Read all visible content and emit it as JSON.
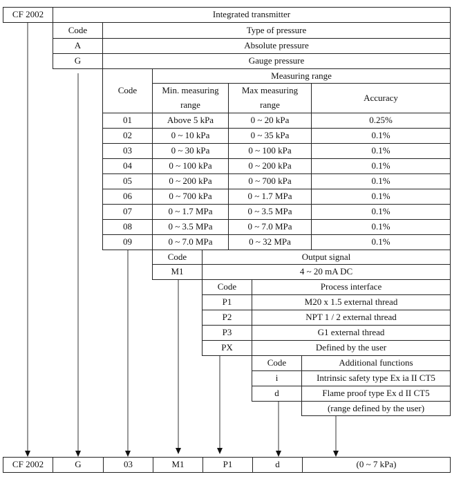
{
  "header": {
    "model": "CF 2002",
    "title": "Integrated transmitter"
  },
  "pressure": {
    "code_label": "Code",
    "type_label": "Type of pressure",
    "rows": [
      {
        "code": "A",
        "desc": "Absolute pressure"
      },
      {
        "code": "G",
        "desc": "Gauge pressure"
      }
    ]
  },
  "range": {
    "code_label": "Code",
    "title": "Measuring range",
    "min_label": "Min. measuring range",
    "max_label": "Max measuring range",
    "accuracy_label": "Accuracy",
    "rows": [
      {
        "code": "01",
        "min": "Above 5 kPa",
        "max": "0 ~ 20 kPa",
        "acc": "0.25%"
      },
      {
        "code": "02",
        "min": "0 ~ 10 kPa",
        "max": "0 ~ 35 kPa",
        "acc": "0.1%"
      },
      {
        "code": "03",
        "min": "0 ~ 30 kPa",
        "max": "0 ~ 100 kPa",
        "acc": "0.1%"
      },
      {
        "code": "04",
        "min": "0 ~ 100 kPa",
        "max": "0 ~ 200 kPa",
        "acc": "0.1%"
      },
      {
        "code": "05",
        "min": "0 ~ 200 kPa",
        "max": "0 ~ 700 kPa",
        "acc": "0.1%"
      },
      {
        "code": "06",
        "min": "0 ~ 700 kPa",
        "max": "0 ~ 1.7 MPa",
        "acc": "0.1%"
      },
      {
        "code": "07",
        "min": "0 ~ 1.7 MPa",
        "max": "0 ~ 3.5 MPa",
        "acc": "0.1%"
      },
      {
        "code": "08",
        "min": "0 ~ 3.5 MPa",
        "max": "0 ~ 7.0 MPa",
        "acc": "0.1%"
      },
      {
        "code": "09",
        "min": "0 ~ 7.0 MPa",
        "max": "0 ~ 32 MPa",
        "acc": "0.1%"
      }
    ]
  },
  "output": {
    "code_label": "Code",
    "title": "Output signal",
    "rows": [
      {
        "code": "M1",
        "desc": "4 ~ 20 mA DC"
      }
    ]
  },
  "process": {
    "code_label": "Code",
    "title": "Process interface",
    "rows": [
      {
        "code": "P1",
        "desc": "M20 x 1.5 external thread"
      },
      {
        "code": "P2",
        "desc": "NPT 1 / 2 external thread"
      },
      {
        "code": "P3",
        "desc": "G1 external thread"
      },
      {
        "code": "PX",
        "desc": "Defined by the user"
      }
    ]
  },
  "additional": {
    "code_label": "Code",
    "title": "Additional functions",
    "rows": [
      {
        "code": "i",
        "desc": "Intrinsic safety type Ex ia II CT5"
      },
      {
        "code": "d",
        "desc": "Flame proof type Ex d II CT5"
      }
    ],
    "range_note": "(range defined by the user)"
  },
  "example": [
    "CF 2002",
    "G",
    "03",
    "M1",
    "P1",
    "d",
    "(0 ~ 7 kPa)"
  ]
}
